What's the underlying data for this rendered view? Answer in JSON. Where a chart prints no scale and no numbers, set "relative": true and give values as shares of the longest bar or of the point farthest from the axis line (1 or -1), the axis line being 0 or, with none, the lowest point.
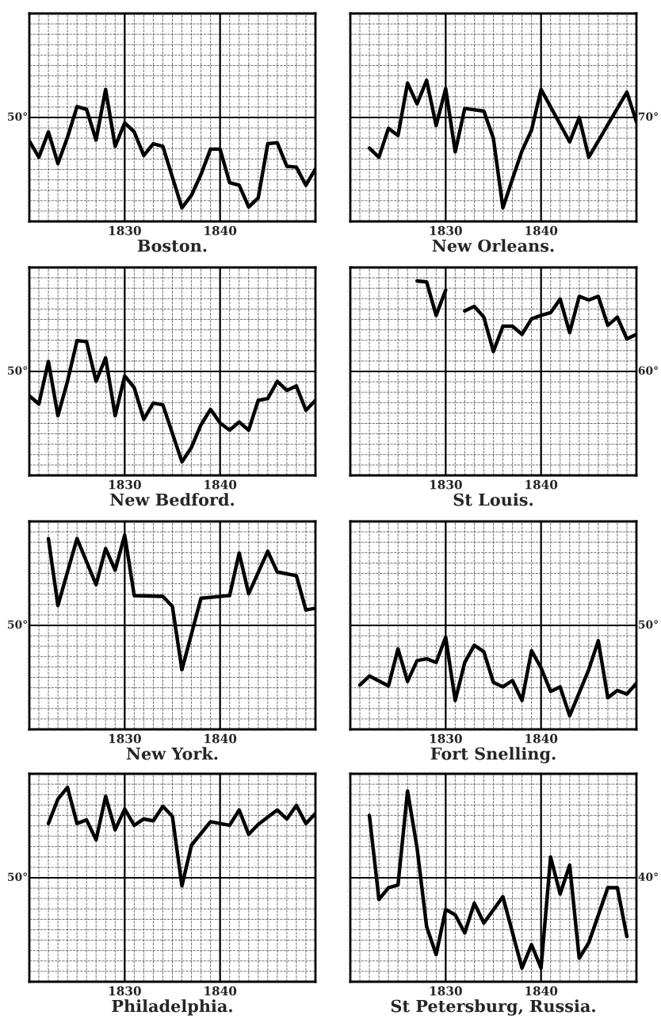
{
  "chart_data": [
    {
      "type": "line",
      "title": "Boston.",
      "relative": true,
      "xlim": [
        1820,
        1850
      ],
      "xticks": [
        1830,
        1840
      ],
      "grid": true,
      "annotations": [
        "50°"
      ],
      "series": [
        {
          "color": "#000000",
          "x": [
            1820,
            1821,
            1822,
            1823,
            1824,
            1825,
            1826,
            1827,
            1828,
            1829,
            1830,
            1831,
            1832,
            1833,
            1834,
            1836,
            1837,
            1838,
            1839,
            1840,
            1841,
            1842,
            1843,
            1844,
            1845,
            1846,
            1847,
            1848,
            1849,
            1850
          ],
          "values": [
            -0.26,
            -0.44,
            -0.16,
            -0.51,
            -0.22,
            0.12,
            0.09,
            -0.25,
            0.31,
            -0.32,
            -0.06,
            -0.16,
            -0.42,
            -0.29,
            -0.32,
            -1,
            -0.86,
            -0.63,
            -0.35,
            -0.35,
            -0.72,
            -0.75,
            -0.99,
            -0.89,
            -0.29,
            -0.28,
            -0.54,
            -0.55,
            -0.75,
            -0.57
          ]
        }
      ]
    },
    {
      "type": "line",
      "title": "New Orleans.",
      "relative": true,
      "xlim": [
        1820,
        1850
      ],
      "xticks": [
        1830,
        1840
      ],
      "grid": true,
      "annotations": [
        "70°"
      ],
      "series": [
        {
          "color": "#000000",
          "x": [
            1822,
            1823,
            1824,
            1825,
            1826,
            1827,
            1828,
            1829,
            1830,
            1831,
            1832,
            1834,
            1835,
            1836,
            1837,
            1838,
            1839,
            1840,
            1843,
            1844,
            1845,
            1849,
            1850
          ],
          "values": [
            -0.34,
            -0.44,
            -0.12,
            -0.2,
            0.38,
            0.15,
            0.41,
            -0.09,
            0.32,
            -0.38,
            0.1,
            0.07,
            -0.23,
            -1,
            -0.68,
            -0.37,
            -0.14,
            0.31,
            -0.27,
            0.0,
            -0.44,
            0.28,
            -0.05
          ]
        }
      ]
    },
    {
      "type": "line",
      "title": "New Bedford.",
      "relative": true,
      "xlim": [
        1820,
        1850
      ],
      "xticks": [
        1830,
        1840
      ],
      "grid": true,
      "annotations": [
        "50°"
      ],
      "series": [
        {
          "color": "#000000",
          "x": [
            1820,
            1821,
            1822,
            1823,
            1824,
            1825,
            1826,
            1827,
            1828,
            1829,
            1830,
            1831,
            1832,
            1833,
            1834,
            1836,
            1837,
            1838,
            1839,
            1840,
            1841,
            1842,
            1843,
            1844,
            1845,
            1846,
            1847,
            1848,
            1849,
            1850
          ],
          "values": [
            -0.27,
            -0.36,
            0.11,
            -0.49,
            -0.11,
            0.34,
            0.33,
            -0.11,
            0.15,
            -0.49,
            -0.05,
            -0.18,
            -0.53,
            -0.35,
            -0.37,
            -1,
            -0.84,
            -0.59,
            -0.42,
            -0.57,
            -0.65,
            -0.56,
            -0.65,
            -0.32,
            -0.3,
            -0.11,
            -0.21,
            -0.16,
            -0.43,
            -0.32
          ]
        }
      ]
    },
    {
      "type": "line",
      "title": "St Louis.",
      "relative": true,
      "xlim": [
        1820,
        1850
      ],
      "xticks": [
        1830,
        1840
      ],
      "grid": true,
      "annotations": [
        "60°"
      ],
      "series": [
        {
          "color": "#000000",
          "x": [
            1827,
            1828,
            1829,
            1830,
            1831,
            1832,
            1833,
            1834,
            1835,
            1836,
            1837,
            1838,
            1839,
            1840,
            1841,
            1842,
            1843,
            1844,
            1845,
            1846,
            1847,
            1848,
            1849,
            1850
          ],
          "values": [
            1,
            0.99,
            0.62,
            0.9,
            null,
            0.67,
            0.72,
            0.6,
            0.22,
            0.5,
            0.5,
            0.41,
            0.58,
            0.62,
            0.65,
            0.8,
            0.43,
            0.83,
            0.79,
            0.83,
            0.51,
            0.6,
            0.36,
            0.41
          ]
        }
      ]
    },
    {
      "type": "line",
      "title": "New York.",
      "relative": true,
      "xlim": [
        1820,
        1850
      ],
      "xticks": [
        1830,
        1840
      ],
      "grid": true,
      "annotations": [
        "50°"
      ],
      "series": [
        {
          "color": "#000000",
          "x": [
            1822,
            1823,
            1825,
            1827,
            1828,
            1829,
            1830,
            1831,
            1834,
            1835,
            1836,
            1838,
            1841,
            1842,
            1843,
            1845,
            1846,
            1848,
            1849,
            1850
          ],
          "values": [
            0.96,
            0.22,
            0.96,
            0.45,
            0.85,
            0.61,
            1,
            0.33,
            0.32,
            0.21,
            -0.49,
            0.3,
            0.33,
            0.8,
            0.35,
            0.82,
            0.59,
            0.55,
            0.17,
            0.19
          ]
        }
      ]
    },
    {
      "type": "line",
      "title": "Fort Snelling.",
      "relative": true,
      "xlim": [
        1820,
        1850
      ],
      "xticks": [
        1830,
        1840
      ],
      "grid": true,
      "annotations": [
        "50°"
      ],
      "series": [
        {
          "color": "#000000",
          "x": [
            1821,
            1822,
            1824,
            1825,
            1826,
            1827,
            1828,
            1829,
            1830,
            1831,
            1832,
            1833,
            1834,
            1835,
            1836,
            1837,
            1838,
            1839,
            1840,
            1841,
            1842,
            1843,
            1845,
            1846,
            1847,
            1848,
            1849,
            1850
          ],
          "values": [
            -0.66,
            -0.56,
            -0.67,
            -0.26,
            -0.62,
            -0.39,
            -0.37,
            -0.41,
            -0.13,
            -0.83,
            -0.41,
            -0.22,
            -0.29,
            -0.63,
            -0.68,
            -0.61,
            -0.83,
            -0.28,
            -0.47,
            -0.73,
            -0.68,
            -1,
            -0.49,
            -0.17,
            -0.8,
            -0.72,
            -0.76,
            -0.64
          ]
        }
      ]
    },
    {
      "type": "line",
      "title": "Philadelphia.",
      "relative": true,
      "xlim": [
        1820,
        1850
      ],
      "xticks": [
        1830,
        1840
      ],
      "grid": true,
      "annotations": [
        "50°"
      ],
      "series": [
        {
          "color": "#000000",
          "x": [
            1822,
            1823,
            1824,
            1825,
            1826,
            1827,
            1828,
            1829,
            1830,
            1831,
            1832,
            1833,
            1834,
            1835,
            1836,
            1837,
            1839,
            1841,
            1842,
            1843,
            1844,
            1846,
            1847,
            1848,
            1849,
            1850
          ],
          "values": [
            0.6,
            0.87,
            1,
            0.6,
            0.64,
            0.42,
            0.9,
            0.53,
            0.76,
            0.58,
            0.65,
            0.63,
            0.79,
            0.68,
            -0.09,
            0.36,
            0.62,
            0.58,
            0.75,
            0.48,
            0.59,
            0.75,
            0.65,
            0.8,
            0.6,
            0.71
          ]
        }
      ]
    },
    {
      "type": "line",
      "title": "St Petersburg, Russia.",
      "relative": true,
      "xlim": [
        1820,
        1850
      ],
      "xticks": [
        1830,
        1840
      ],
      "grid": true,
      "annotations": [
        "40°"
      ],
      "series": [
        {
          "color": "#000000",
          "x": [
            1822,
            1823,
            1824,
            1825,
            1826,
            1827,
            1828,
            1829,
            1830,
            1831,
            1832,
            1833,
            1834,
            1836,
            1838,
            1839,
            1840,
            1841,
            1842,
            1843,
            1844,
            1845,
            1847,
            1848,
            1849
          ],
          "values": [
            0.69,
            -0.24,
            -0.11,
            -0.08,
            0.96,
            0.33,
            -0.54,
            -0.85,
            -0.35,
            -0.41,
            -0.61,
            -0.28,
            -0.5,
            -0.21,
            -1,
            -0.74,
            -1,
            0.23,
            -0.18,
            0.14,
            -0.89,
            -0.72,
            -0.11,
            -0.11,
            -0.65
          ]
        }
      ]
    }
  ]
}
